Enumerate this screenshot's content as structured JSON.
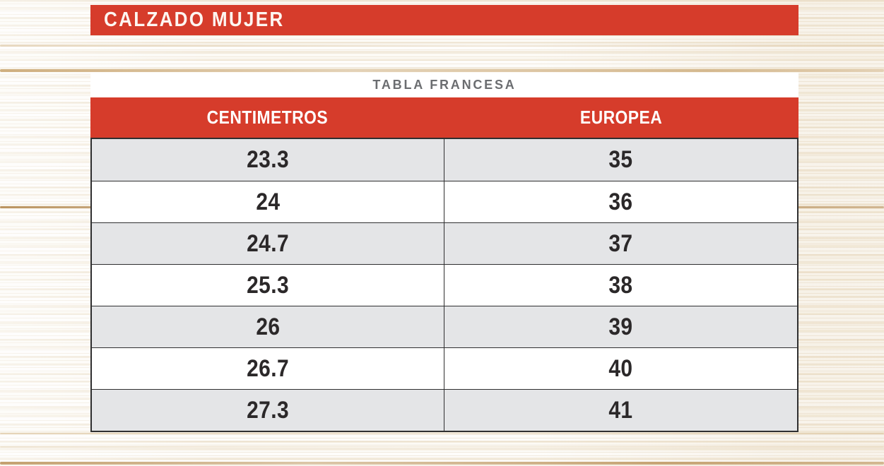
{
  "banner": {
    "title": "CALZADO MUJER"
  },
  "panel": {
    "title": "TABLA FRANCESA"
  },
  "chart_data": {
    "type": "table",
    "title": "TABLA FRANCESA",
    "section": "CALZADO MUJER",
    "columns": [
      "CENTIMETROS",
      "EUROPEA"
    ],
    "rows": [
      [
        "23.3",
        "35"
      ],
      [
        "24",
        "36"
      ],
      [
        "24.7",
        "37"
      ],
      [
        "25.3",
        "38"
      ],
      [
        "26",
        "39"
      ],
      [
        "26.7",
        "40"
      ],
      [
        "27.3",
        "41"
      ]
    ]
  },
  "colors": {
    "accent_red": "#d63c2b",
    "row_alt_gray": "#e4e5e7",
    "border_dark": "#2f2f30",
    "table_title_gray": "#6b6d70",
    "cell_text": "#2b2829",
    "wood_base": "#f7f3ea"
  }
}
